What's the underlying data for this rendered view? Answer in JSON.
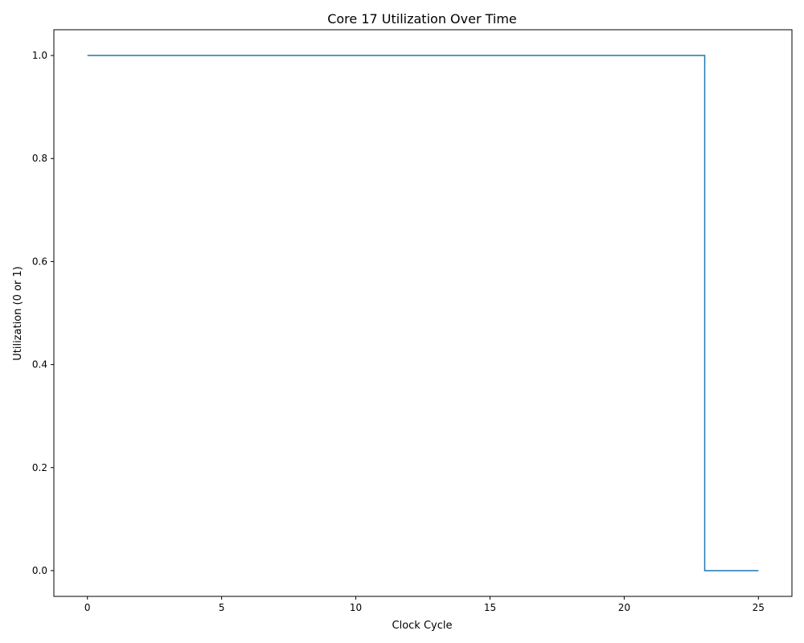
{
  "chart_data": {
    "type": "line",
    "title": "Core 17 Utilization Over Time",
    "xlabel": "Clock Cycle",
    "ylabel": "Utilization (0 or 1)",
    "xlim": [
      -1.25,
      26.25
    ],
    "ylim": [
      -0.05,
      1.05
    ],
    "grid": false,
    "step": "post",
    "x_ticks": [
      0,
      5,
      10,
      15,
      20,
      25
    ],
    "x_tick_labels": [
      "0",
      "5",
      "10",
      "15",
      "20",
      "25"
    ],
    "y_ticks": [
      0.0,
      0.2,
      0.4,
      0.6,
      0.8,
      1.0
    ],
    "y_tick_labels": [
      "0.0",
      "0.2",
      "0.4",
      "0.6",
      "0.8",
      "1.0"
    ],
    "series": [
      {
        "color": "#1f77b4",
        "x": [
          0,
          23,
          25
        ],
        "y": [
          1,
          0,
          0
        ]
      }
    ]
  }
}
